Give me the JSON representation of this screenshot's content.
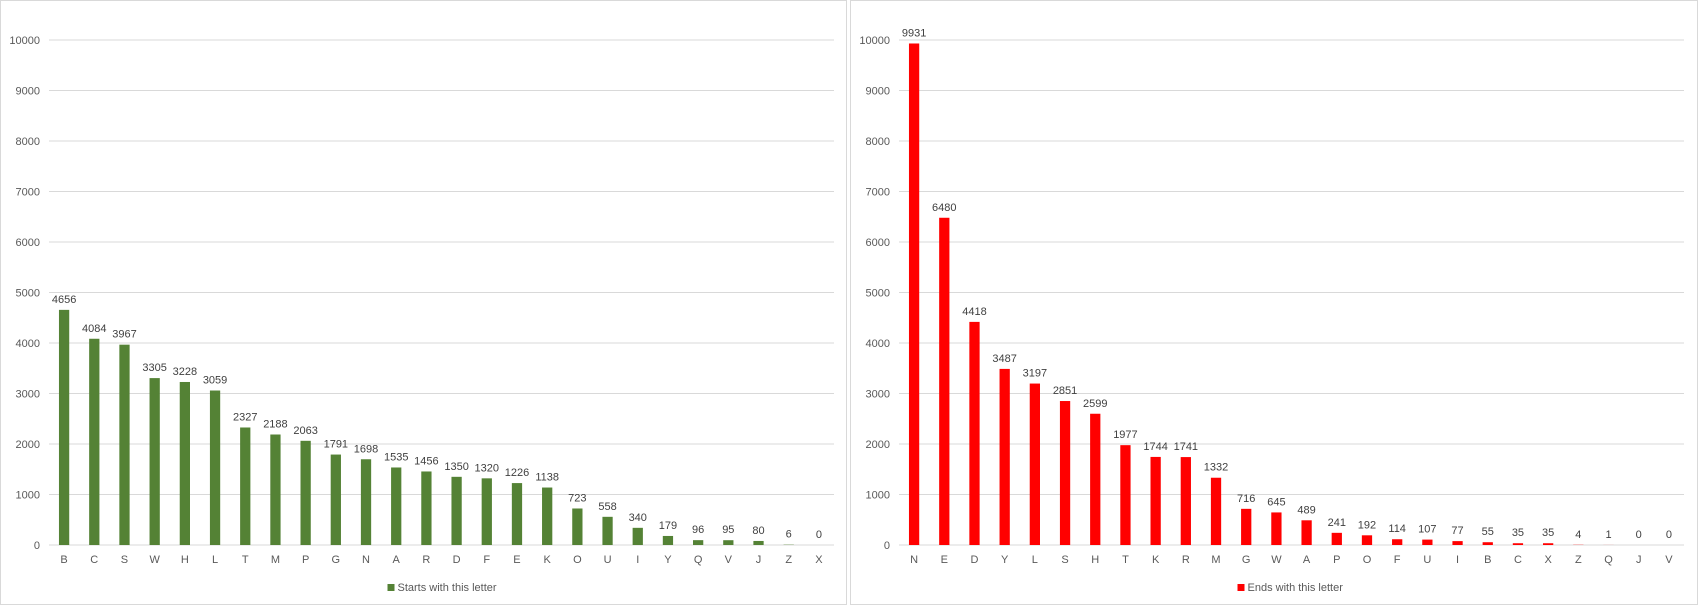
{
  "chart_data": [
    {
      "type": "bar",
      "categories": [
        "B",
        "C",
        "S",
        "W",
        "H",
        "L",
        "T",
        "M",
        "P",
        "G",
        "N",
        "A",
        "R",
        "D",
        "F",
        "E",
        "K",
        "O",
        "U",
        "I",
        "Y",
        "Q",
        "V",
        "J",
        "Z",
        "X"
      ],
      "series": [
        {
          "name": "Starts with this letter",
          "color": "#548235",
          "values": [
            4656,
            4084,
            3967,
            3305,
            3228,
            3059,
            2327,
            2188,
            2063,
            1791,
            1698,
            1535,
            1456,
            1350,
            1320,
            1226,
            1138,
            723,
            558,
            340,
            179,
            96,
            95,
            80,
            6,
            0
          ]
        }
      ],
      "yticks": [
        "0",
        "1000",
        "2000",
        "3000",
        "4000",
        "5000",
        "6000",
        "7000",
        "8000",
        "9000",
        "10000"
      ],
      "ylim": [
        0,
        10000
      ],
      "grid": true,
      "legend": "bottom"
    },
    {
      "type": "bar",
      "categories": [
        "N",
        "E",
        "D",
        "Y",
        "L",
        "S",
        "H",
        "T",
        "K",
        "R",
        "M",
        "G",
        "W",
        "A",
        "P",
        "O",
        "F",
        "U",
        "I",
        "B",
        "C",
        "X",
        "Z",
        "Q",
        "J",
        "V"
      ],
      "series": [
        {
          "name": "Ends with this letter",
          "color": "#ff0000",
          "values": [
            9931,
            6480,
            4418,
            3487,
            3197,
            2851,
            2599,
            1977,
            1744,
            1741,
            1332,
            716,
            645,
            489,
            241,
            192,
            114,
            107,
            77,
            55,
            35,
            35,
            4,
            1,
            0,
            0
          ]
        }
      ],
      "yticks": [
        "0",
        "1000",
        "2000",
        "3000",
        "4000",
        "5000",
        "6000",
        "7000",
        "8000",
        "9000",
        "10000"
      ],
      "ylim": [
        0,
        10000
      ],
      "grid": true,
      "legend": "bottom"
    }
  ]
}
